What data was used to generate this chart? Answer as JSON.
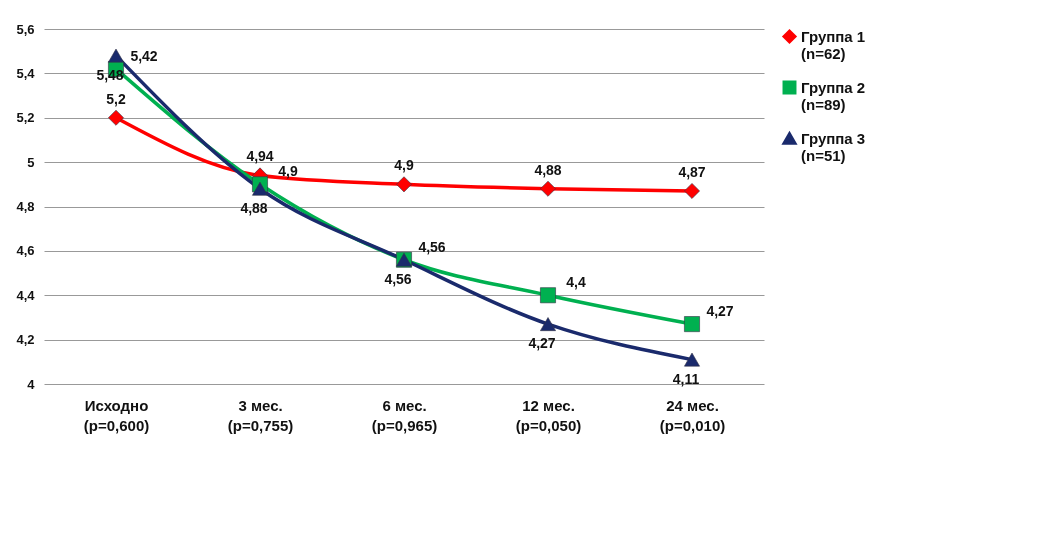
{
  "chart_data": {
    "type": "line",
    "categories": [
      "Исходно (p=0,600)",
      "3 мес. (p=0,755)",
      "6 мес. (p=0,965)",
      "12 мес. (p=0,050)",
      "24 мес. (p=0,010)"
    ],
    "series": [
      {
        "name": "Группа 1 (n=62)",
        "color": "#ff0000",
        "marker": "diamond",
        "values": [
          5.2,
          4.94,
          4.9,
          4.88,
          4.87
        ],
        "value_labels": [
          "5,2",
          "4,94",
          "4,9",
          "4,88",
          "4,87"
        ]
      },
      {
        "name": "Группа 2 (n=89)",
        "color": "#00b050",
        "marker": "square",
        "values": [
          5.42,
          4.9,
          4.56,
          4.4,
          4.27
        ],
        "value_labels": [
          "5,42",
          "4,9",
          "4,56",
          "4,4",
          "4,27"
        ]
      },
      {
        "name": "Группа 3 (n=51)",
        "color": "#1a2a6c",
        "marker": "triangle",
        "values": [
          5.48,
          4.88,
          4.56,
          4.27,
          4.11
        ],
        "value_labels": [
          "5,48",
          "4,88",
          "4,56",
          "4,27",
          "4,11"
        ]
      }
    ],
    "ylim": [
      4,
      5.6
    ],
    "yticks": [
      4,
      {
        "value": 4.2,
        "label": "4,2"
      },
      {
        "value": 4.4,
        "label": "4,4"
      },
      {
        "value": 4.6,
        "label": "4,6"
      },
      {
        "value": 4.8,
        "label": "4,8"
      },
      5,
      {
        "value": 5.2,
        "label": "5,2"
      },
      {
        "value": 5.4,
        "label": "5,4"
      },
      {
        "value": 5.6,
        "label": "5,6"
      }
    ],
    "grid": "y",
    "legend": "right"
  }
}
